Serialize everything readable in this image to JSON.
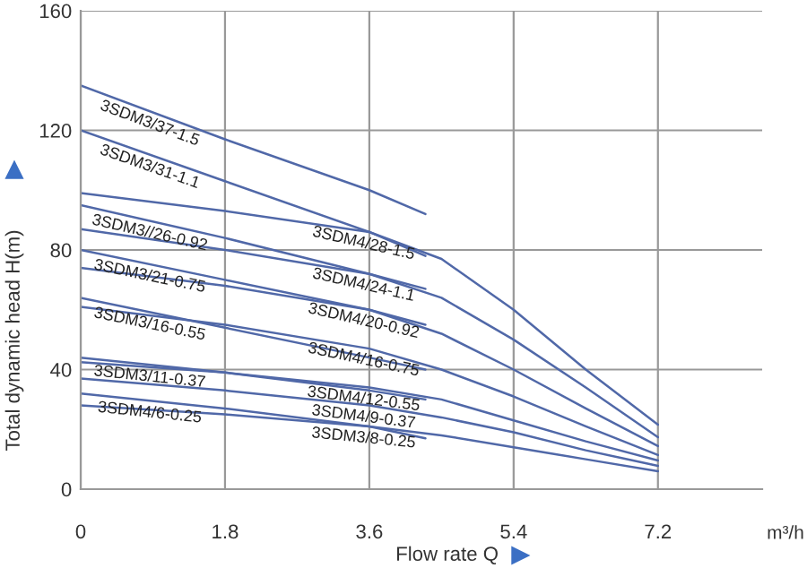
{
  "chart_data": {
    "type": "line",
    "xlabel": "Flow rate Q",
    "ylabel": "Total dynamic head H(m)",
    "xlim": [
      0,
      8.5
    ],
    "xticks": [
      0,
      1.8,
      3.6,
      5.4,
      7.2
    ],
    "ylim": [
      0,
      160
    ],
    "yticks": [
      0,
      40,
      80,
      120,
      160
    ],
    "grid": true,
    "marker": "none",
    "line_style": "solid",
    "series": [
      {
        "name": "3SDM3/37-1.5",
        "color": "#5068a8",
        "x": [
          0,
          1.8,
          3.6,
          4.3
        ],
        "values": [
          135,
          117,
          100,
          92
        ]
      },
      {
        "name": "3SDM3/31-1.1",
        "color": "#5068a8",
        "x": [
          0,
          1.8,
          3.6,
          4.3
        ],
        "values": [
          120,
          103,
          86,
          78
        ]
      },
      {
        "name": "3SDM3//26-0.92",
        "color": "#5068a8",
        "x": [
          0,
          1.8,
          3.6,
          4.3
        ],
        "values": [
          95,
          84,
          72,
          67
        ]
      },
      {
        "name": "3SDM3/21-0.75",
        "color": "#5068a8",
        "x": [
          0,
          1.8,
          3.6,
          4.3
        ],
        "values": [
          80,
          70,
          60,
          55
        ]
      },
      {
        "name": "3SDM3/16-0.55",
        "color": "#5068a8",
        "x": [
          0,
          1.8,
          3.6,
          4.3
        ],
        "values": [
          64,
          54,
          44,
          40
        ]
      },
      {
        "name": "3SDM3/11-0.37",
        "color": "#5068a8",
        "x": [
          0,
          1.8,
          3.6,
          4.3
        ],
        "values": [
          44,
          39,
          33,
          30
        ]
      },
      {
        "name": "3SDM4/6-0.25",
        "color": "#5068a8",
        "x": [
          0,
          1.8,
          3.6,
          4.3
        ],
        "values": [
          32,
          27,
          21,
          17
        ]
      },
      {
        "name": "3SDM4/28-1.5",
        "color": "#5068a8",
        "x": [
          0,
          1.8,
          3.6,
          4.5,
          5.4,
          6.3,
          7.2
        ],
        "values": [
          99,
          93,
          86,
          77,
          60,
          40,
          21.6
        ]
      },
      {
        "name": "3SDM4/24-1.1",
        "color": "#5068a8",
        "x": [
          0,
          1.8,
          3.6,
          4.5,
          5.4,
          6.3,
          7.2
        ],
        "values": [
          87,
          80,
          72,
          64,
          50,
          34,
          17.4
        ]
      },
      {
        "name": "3SDM4/20-0.92",
        "color": "#5068a8",
        "x": [
          0,
          1.8,
          3.6,
          4.5,
          5.4,
          6.3,
          7.2
        ],
        "values": [
          74,
          68,
          60,
          52,
          40,
          27,
          14.4
        ]
      },
      {
        "name": "3SDM4/16-0.75",
        "color": "#5068a8",
        "x": [
          0,
          1.8,
          3.6,
          4.5,
          5.4,
          6.3,
          7.2
        ],
        "values": [
          61,
          55,
          47,
          40,
          31,
          21,
          11.4
        ]
      },
      {
        "name": "3SDM4/12-0.55",
        "color": "#5068a8",
        "x": [
          0,
          1.8,
          3.6,
          4.5,
          5.4,
          6.3,
          7.2
        ],
        "values": [
          42.5,
          39,
          34,
          30,
          23,
          16,
          9.6
        ]
      },
      {
        "name": "3SDM4/9-0.37",
        "color": "#5068a8",
        "x": [
          0,
          1.8,
          3.6,
          4.5,
          5.4,
          6.3,
          7.2
        ],
        "values": [
          37,
          33,
          28,
          24,
          19,
          13,
          7.8
        ]
      },
      {
        "name": "3SDM3/8-0.25",
        "color": "#5068a8",
        "x": [
          0,
          1.8,
          3.6,
          4.5,
          5.4,
          6.3,
          7.2
        ],
        "values": [
          28,
          25,
          21,
          18,
          14,
          10,
          6
        ]
      }
    ],
    "annotations": [
      "m³/h"
    ]
  }
}
